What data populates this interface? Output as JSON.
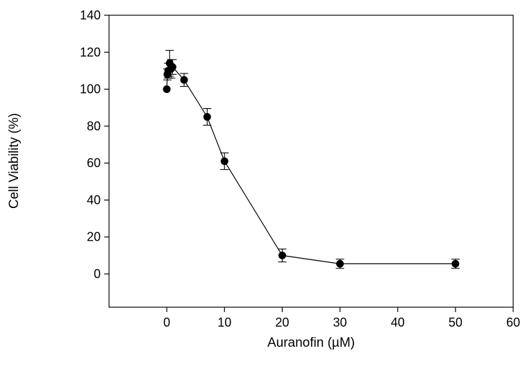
{
  "chart_data": {
    "type": "scatter",
    "title": "",
    "xlabel": "Auranofin (µM)",
    "ylabel": "Cell Viability (%)",
    "xlim": [
      -10,
      60
    ],
    "ylim": [
      -18,
      140
    ],
    "xticks": [
      0,
      10,
      20,
      30,
      40,
      50,
      60
    ],
    "yticks": [
      0,
      20,
      40,
      60,
      80,
      100,
      120,
      140
    ],
    "grid": false,
    "legend": "none",
    "series": [
      {
        "line": true,
        "marker": "filled-circle",
        "color": "#000000",
        "x": [
          0,
          0.1,
          0.25,
          0.5,
          0.75,
          1,
          3,
          7,
          10,
          20,
          30,
          50
        ],
        "y": [
          100,
          108,
          110,
          114,
          111,
          112,
          105,
          85,
          61,
          10,
          5.5,
          5.5
        ],
        "err": [
          0,
          3,
          4,
          7,
          5,
          4,
          3.5,
          4.5,
          4.5,
          3.5,
          2.5,
          2.5
        ]
      }
    ]
  }
}
